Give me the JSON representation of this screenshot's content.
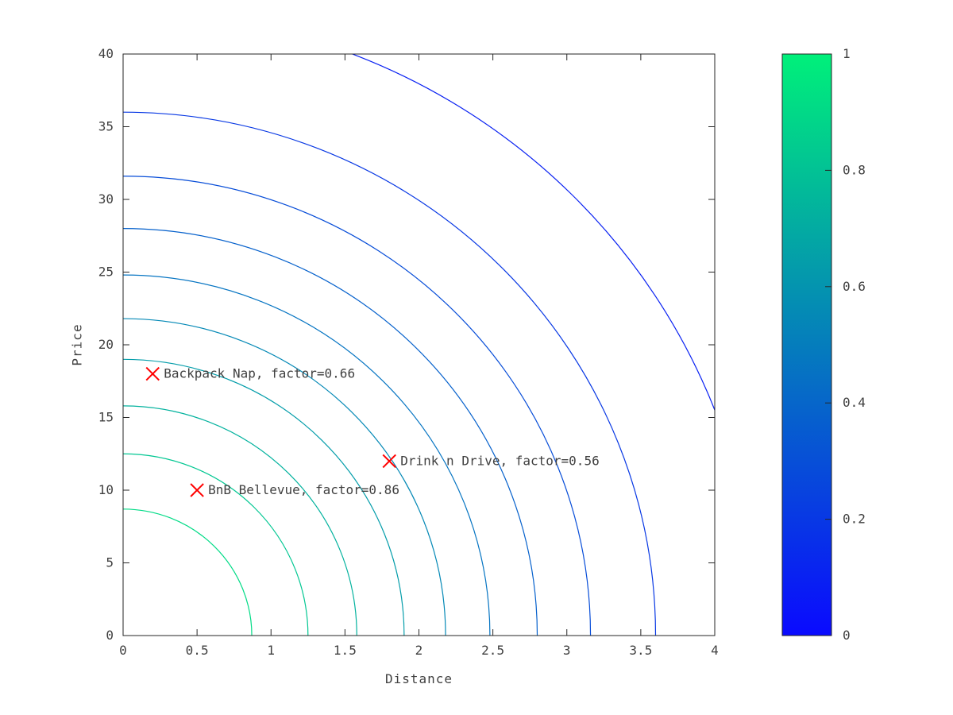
{
  "chart_data": {
    "type": "contour",
    "title": "",
    "xlabel": "Distance",
    "ylabel": "Price",
    "xlim": [
      0,
      4
    ],
    "ylim": [
      0,
      40
    ],
    "xticks": [
      0,
      0.5,
      1,
      1.5,
      2,
      2.5,
      3,
      3.5,
      4
    ],
    "yticks": [
      0,
      5,
      10,
      15,
      20,
      25,
      30,
      35,
      40
    ],
    "grid": false,
    "contours": [
      {
        "x_intercept": 0.87,
        "y_intercept": 8.7,
        "value": 0.91
      },
      {
        "x_intercept": 1.25,
        "y_intercept": 12.5,
        "value": 0.82
      },
      {
        "x_intercept": 1.58,
        "y_intercept": 15.8,
        "value": 0.73
      },
      {
        "x_intercept": 1.9,
        "y_intercept": 19.0,
        "value": 0.64
      },
      {
        "x_intercept": 2.18,
        "y_intercept": 21.8,
        "value": 0.55
      },
      {
        "x_intercept": 2.48,
        "y_intercept": 24.8,
        "value": 0.46
      },
      {
        "x_intercept": 2.8,
        "y_intercept": 28.0,
        "value": 0.38
      },
      {
        "x_intercept": 3.16,
        "y_intercept": 31.6,
        "value": 0.29
      },
      {
        "x_intercept": 3.6,
        "y_intercept": 36.0,
        "value": 0.2
      },
      {
        "x_intercept": 4.29,
        "y_intercept": 42.9,
        "value": 0.1
      }
    ],
    "points": [
      {
        "name": "Backpack Nap",
        "factor": 0.66,
        "x": 0.2,
        "y": 18,
        "label": "Backpack Nap, factor=0.66"
      },
      {
        "name": "Drink n Drive",
        "factor": 0.56,
        "x": 1.8,
        "y": 12,
        "label": "Drink n Drive, factor=0.56"
      },
      {
        "name": "BnB Bellevue",
        "factor": 0.86,
        "x": 0.5,
        "y": 10,
        "label": "BnB Bellevue, factor=0.86"
      }
    ],
    "marker_color": "#ff0000",
    "text_color": "#404040",
    "axis_color": "#262626",
    "colorbar": {
      "min": 0,
      "max": 1,
      "ticks": [
        0,
        0.2,
        0.4,
        0.6,
        0.8,
        1
      ],
      "color_low": "#0a0aff",
      "color_high": "#00f07a",
      "legend_position": "right"
    }
  }
}
